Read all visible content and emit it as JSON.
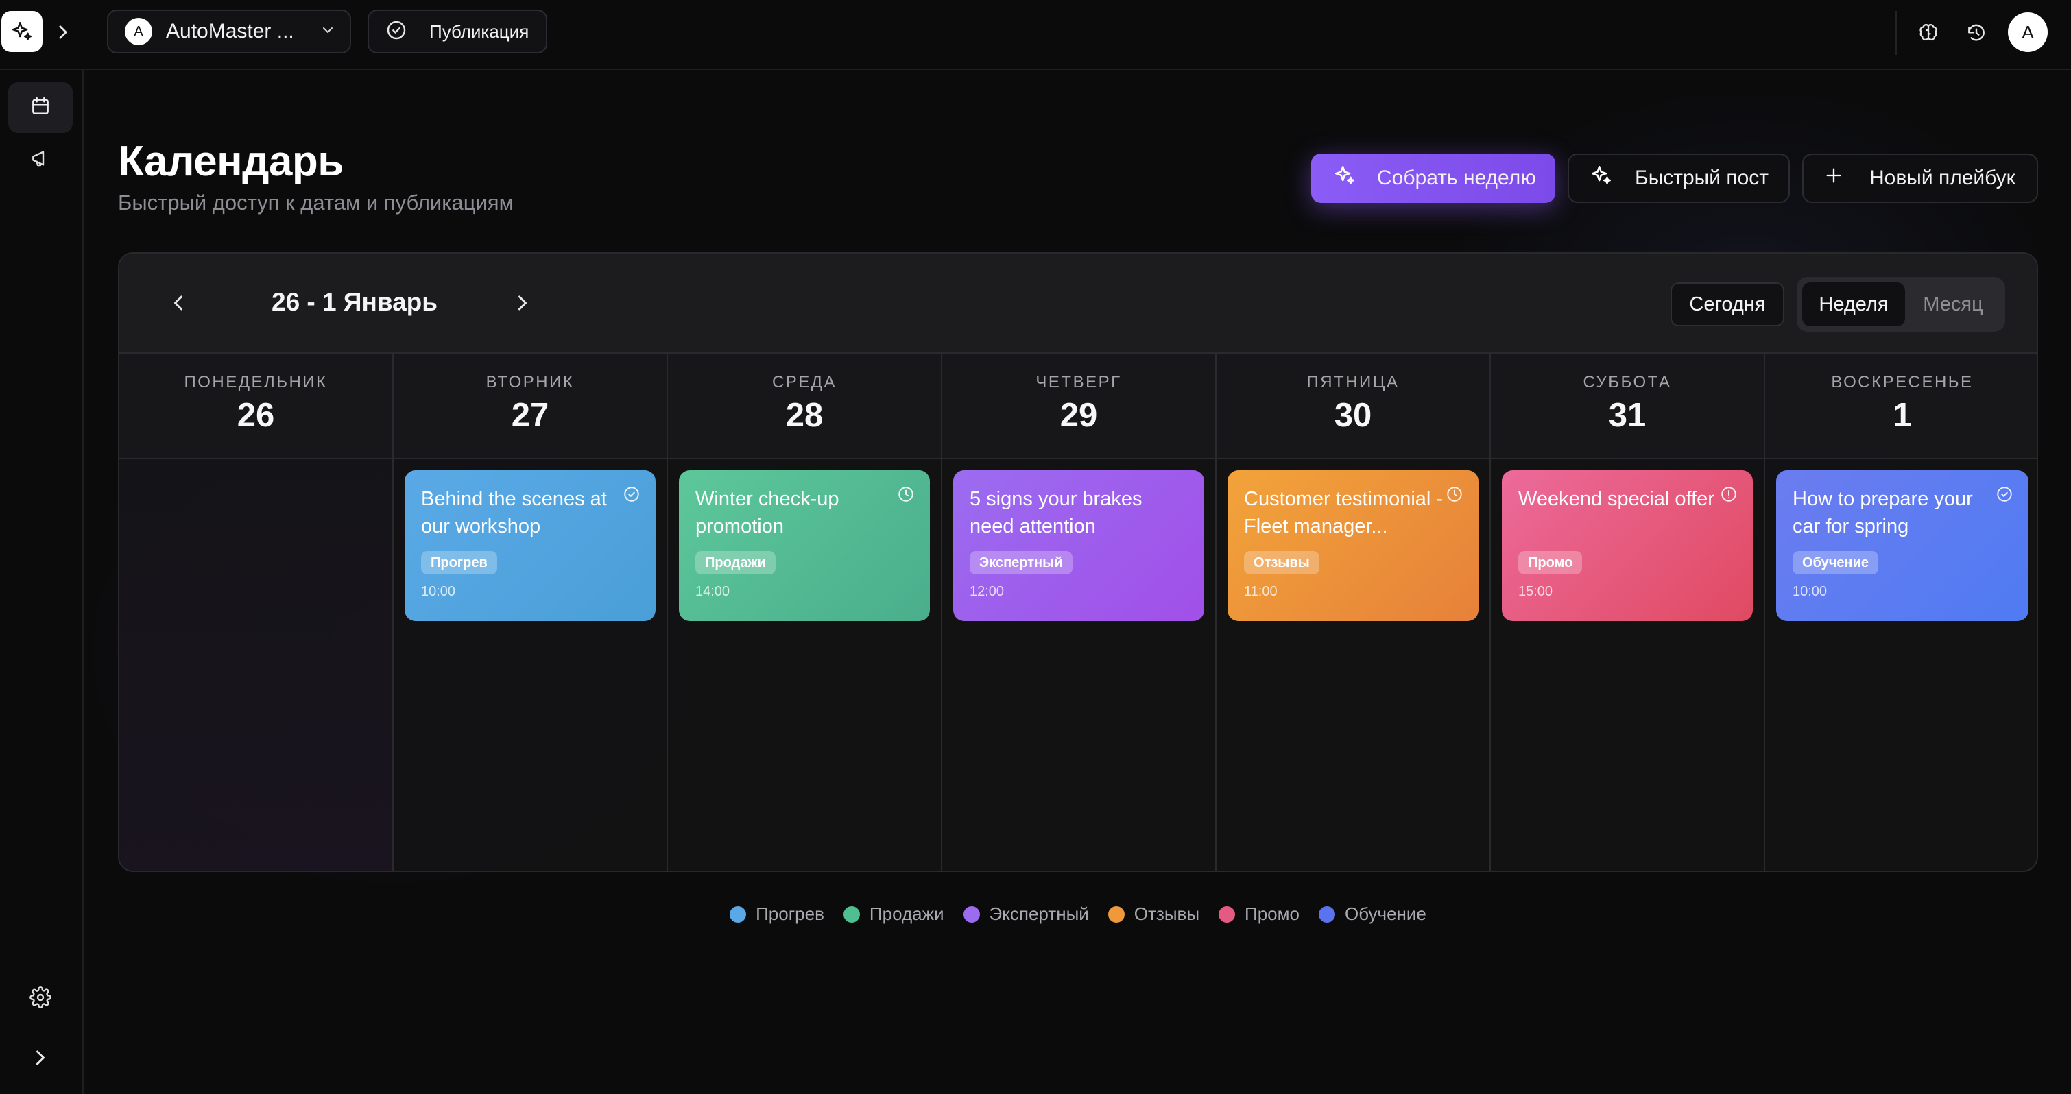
{
  "topbar": {
    "project_initial": "A",
    "project_name": "AutoMaster ...",
    "publication_label": "Публикация",
    "user_initial": "A"
  },
  "header": {
    "title": "Календарь",
    "subtitle": "Быстрый доступ к датам и публикациям",
    "buttons": {
      "collect_week": "Собрать неделю",
      "quick_post": "Быстрый пост",
      "new_playbook": "Новый плейбук"
    }
  },
  "calendar": {
    "range": "26 - 1 Январь",
    "today_label": "Сегодня",
    "view_week": "Неделя",
    "view_month": "Месяц",
    "active_view": "week",
    "days": [
      {
        "name": "ПОНЕДЕЛЬНИК",
        "num": "26",
        "post": null
      },
      {
        "name": "ВТОРНИК",
        "num": "27",
        "post": {
          "title": "Behind the scenes at our workshop",
          "tag": "Прогрев",
          "time": "10:00",
          "status_icon": "check-circle-icon",
          "color_from": "#5aa9e6",
          "color_to": "#4a9fd8"
        }
      },
      {
        "name": "СРЕДА",
        "num": "28",
        "post": {
          "title": "Winter check-up promotion",
          "tag": "Продажи",
          "time": "14:00",
          "status_icon": "clock-icon",
          "color_from": "#5dc79a",
          "color_to": "#4aae8c"
        }
      },
      {
        "name": "ЧЕТВЕРГ",
        "num": "29",
        "post": {
          "title": "5 signs your brakes need attention",
          "tag": "Экспертный",
          "time": "12:00",
          "status_icon": "",
          "color_from": "#9b6cf0",
          "color_to": "#a14fe8"
        }
      },
      {
        "name": "ПЯТНИЦА",
        "num": "30",
        "post": {
          "title": "Customer testimonial - Fleet manager...",
          "tag": "Отзывы",
          "time": "11:00",
          "status_icon": "clock-icon",
          "color_from": "#f2a33a",
          "color_to": "#e6813a"
        }
      },
      {
        "name": "СУББОТА",
        "num": "31",
        "post": {
          "title": "Weekend special offer",
          "tag": "Промо",
          "time": "15:00",
          "status_icon": "alert-circle-icon",
          "color_from": "#ec6a9a",
          "color_to": "#e04a62"
        }
      },
      {
        "name": "ВОСКРЕСЕНЬЕ",
        "num": "1",
        "post": {
          "title": "How to prepare your car for spring",
          "tag": "Обучение",
          "time": "10:00",
          "status_icon": "check-circle-icon",
          "color_from": "#6b7cf0",
          "color_to": "#4f7bf2"
        }
      }
    ]
  },
  "legend": [
    {
      "label": "Прогрев",
      "color": "#5aa9e6"
    },
    {
      "label": "Продажи",
      "color": "#4fbf92"
    },
    {
      "label": "Экспертный",
      "color": "#9b6cf0"
    },
    {
      "label": "Отзывы",
      "color": "#f0993a"
    },
    {
      "label": "Промо",
      "color": "#e45a82"
    },
    {
      "label": "Обучение",
      "color": "#5b74ee"
    }
  ],
  "icons": {
    "logo": "sparkle-logo-icon",
    "sidebar": [
      "calendar-icon",
      "megaphone-icon",
      "gear-icon",
      "chevron-right-icon"
    ],
    "top_right": [
      "brain-icon",
      "history-icon"
    ]
  }
}
